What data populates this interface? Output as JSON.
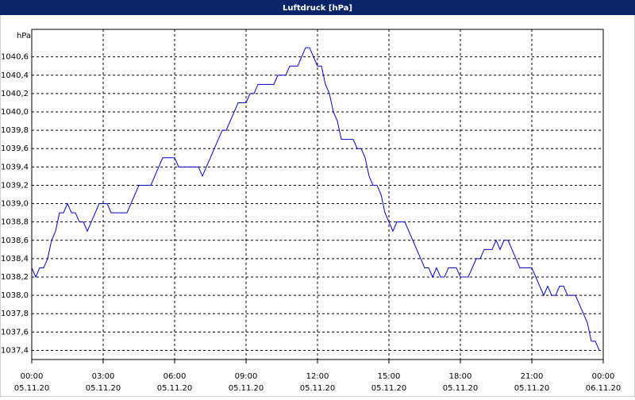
{
  "chart_data": {
    "type": "line",
    "title": "Luftdruck [hPa]",
    "y_unit": "hPa",
    "x": [
      0,
      10,
      20,
      30,
      40,
      50,
      60,
      70,
      80,
      90,
      100,
      110,
      120,
      130,
      140,
      150,
      160,
      170,
      180,
      190,
      200,
      210,
      220,
      230,
      240,
      250,
      260,
      270,
      280,
      290,
      300,
      310,
      320,
      330,
      340,
      350,
      360,
      370,
      380,
      390,
      400,
      410,
      420,
      430,
      440,
      450,
      460,
      470,
      480,
      490,
      500,
      510,
      520,
      530,
      540,
      550,
      560,
      570,
      580,
      590,
      600,
      610,
      620,
      630,
      640,
      650,
      660,
      670,
      680,
      690,
      700,
      710,
      720,
      730,
      740,
      750,
      760,
      770,
      780,
      790,
      800,
      810,
      820,
      830,
      840,
      850,
      860,
      870,
      880,
      890,
      900,
      910,
      920,
      930,
      940,
      950,
      960,
      970,
      980,
      990,
      1000,
      1010,
      1020,
      1030,
      1040,
      1050,
      1060,
      1070,
      1080,
      1090,
      1100,
      1110,
      1120,
      1130,
      1140,
      1150,
      1160,
      1170,
      1180,
      1190,
      1200,
      1210,
      1220,
      1230,
      1240,
      1250,
      1260,
      1270,
      1280,
      1290,
      1300,
      1310,
      1320,
      1330,
      1340,
      1350,
      1360,
      1370,
      1380,
      1390,
      1400,
      1410,
      1420,
      1430
    ],
    "series": [
      {
        "name": "Luftdruck",
        "color": "#0000cc",
        "values": [
          1038.3,
          1038.2,
          1038.3,
          1038.3,
          1038.4,
          1038.6,
          1038.7,
          1038.9,
          1038.9,
          1039.0,
          1038.9,
          1038.9,
          1038.8,
          1038.8,
          1038.7,
          1038.8,
          1038.9,
          1039.0,
          1039.0,
          1039.0,
          1038.9,
          1038.9,
          1038.9,
          1038.9,
          1038.9,
          1039.0,
          1039.1,
          1039.2,
          1039.2,
          1039.2,
          1039.2,
          1039.3,
          1039.4,
          1039.5,
          1039.5,
          1039.5,
          1039.5,
          1039.4,
          1039.4,
          1039.4,
          1039.4,
          1039.4,
          1039.4,
          1039.3,
          1039.4,
          1039.5,
          1039.6,
          1039.7,
          1039.8,
          1039.8,
          1039.9,
          1040.0,
          1040.1,
          1040.1,
          1040.1,
          1040.2,
          1040.2,
          1040.3,
          1040.3,
          1040.3,
          1040.3,
          1040.3,
          1040.4,
          1040.4,
          1040.4,
          1040.5,
          1040.5,
          1040.5,
          1040.6,
          1040.7,
          1040.7,
          1040.6,
          1040.5,
          1040.5,
          1040.3,
          1040.2,
          1040.0,
          1039.9,
          1039.7,
          1039.7,
          1039.7,
          1039.7,
          1039.6,
          1039.6,
          1039.5,
          1039.3,
          1039.2,
          1039.2,
          1039.1,
          1038.9,
          1038.8,
          1038.7,
          1038.8,
          1038.8,
          1038.8,
          1038.7,
          1038.6,
          1038.5,
          1038.4,
          1038.3,
          1038.3,
          1038.2,
          1038.3,
          1038.2,
          1038.2,
          1038.3,
          1038.3,
          1038.3,
          1038.2,
          1038.2,
          1038.2,
          1038.3,
          1038.4,
          1038.4,
          1038.5,
          1038.5,
          1038.5,
          1038.6,
          1038.5,
          1038.6,
          1038.6,
          1038.5,
          1038.4,
          1038.3,
          1038.3,
          1038.3,
          1038.3,
          1038.2,
          1038.1,
          1038.0,
          1038.1,
          1038.0,
          1038.0,
          1038.1,
          1038.1,
          1038.0,
          1038.0,
          1038.0,
          1037.9,
          1037.8,
          1037.7,
          1037.5,
          1037.5,
          1037.4
        ]
      }
    ],
    "xlim": [
      0,
      1440
    ],
    "xticks": [
      {
        "value": 0,
        "label": "00:00"
      },
      {
        "value": 180,
        "label": "03:00"
      },
      {
        "value": 360,
        "label": "06:00"
      },
      {
        "value": 540,
        "label": "09:00"
      },
      {
        "value": 720,
        "label": "12:00"
      },
      {
        "value": 900,
        "label": "15:00"
      },
      {
        "value": 1080,
        "label": "18:00"
      },
      {
        "value": 1260,
        "label": "21:00"
      },
      {
        "value": 1440,
        "label": "00:00"
      }
    ],
    "xtick_dates": [
      "05.11.20",
      "05.11.20",
      "05.11.20",
      "05.11.20",
      "05.11.20",
      "05.11.20",
      "05.11.20",
      "05.11.20",
      "06.11.20"
    ],
    "ylim": [
      1037.3,
      1040.9
    ],
    "yticks": [
      {
        "value": 1037.4,
        "label": "1037,4"
      },
      {
        "value": 1037.6,
        "label": "1037,6"
      },
      {
        "value": 1037.8,
        "label": "1037,8"
      },
      {
        "value": 1038.0,
        "label": "1038,0"
      },
      {
        "value": 1038.2,
        "label": "1038,2"
      },
      {
        "value": 1038.4,
        "label": "1038,4"
      },
      {
        "value": 1038.6,
        "label": "1038,6"
      },
      {
        "value": 1038.8,
        "label": "1038,8"
      },
      {
        "value": 1039.0,
        "label": "1039,0"
      },
      {
        "value": 1039.2,
        "label": "1039,2"
      },
      {
        "value": 1039.4,
        "label": "1039,4"
      },
      {
        "value": 1039.6,
        "label": "1039,6"
      },
      {
        "value": 1039.8,
        "label": "1039,8"
      },
      {
        "value": 1040.0,
        "label": "1040,0"
      },
      {
        "value": 1040.2,
        "label": "1040,2"
      },
      {
        "value": 1040.4,
        "label": "1040,4"
      },
      {
        "value": 1040.6,
        "label": "1040,6"
      }
    ],
    "grid": true
  }
}
